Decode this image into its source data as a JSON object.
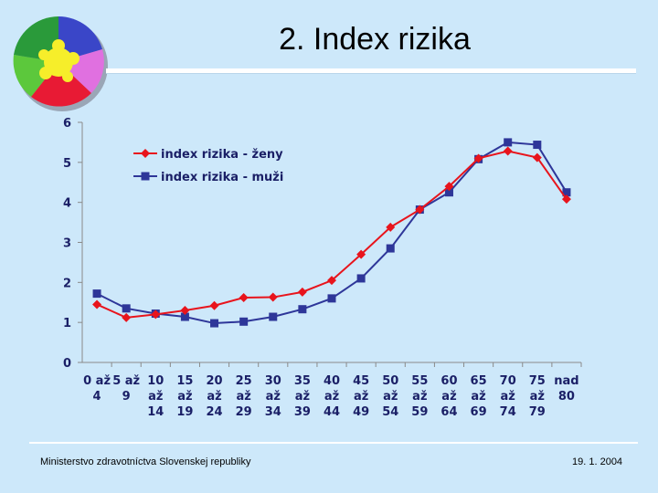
{
  "slide": {
    "title": "2. Index rizika",
    "footer_left": "Ministerstvo zdravotníctva Slovenskej republiky",
    "footer_right": "19. 1. 2004"
  },
  "logo": {
    "icon": "puzzle-circle-logo"
  },
  "colors": {
    "background": "#cde8fa",
    "women": "#e8141c",
    "men": "#2e3699",
    "axis_text": "#1a1f66"
  },
  "chart_data": {
    "type": "line",
    "categories": [
      [
        "0 až",
        "4"
      ],
      [
        "5 až",
        "9"
      ],
      [
        "10",
        "až",
        "14"
      ],
      [
        "15",
        "až",
        "19"
      ],
      [
        "20",
        "až",
        "24"
      ],
      [
        "25",
        "až",
        "29"
      ],
      [
        "30",
        "až",
        "34"
      ],
      [
        "35",
        "až",
        "39"
      ],
      [
        "40",
        "až",
        "44"
      ],
      [
        "45",
        "až",
        "49"
      ],
      [
        "50",
        "až",
        "54"
      ],
      [
        "55",
        "až",
        "59"
      ],
      [
        "60",
        "až",
        "64"
      ],
      [
        "65",
        "až",
        "69"
      ],
      [
        "70",
        "až",
        "74"
      ],
      [
        "75",
        "až",
        "79"
      ],
      [
        "nad",
        "80"
      ]
    ],
    "series": [
      {
        "name": "index rizika - ženy",
        "marker": "diamond",
        "values": [
          1.45,
          1.12,
          1.2,
          1.3,
          1.42,
          1.62,
          1.63,
          1.76,
          2.05,
          2.7,
          3.38,
          3.82,
          4.4,
          5.1,
          5.28,
          5.12,
          4.08
        ]
      },
      {
        "name": "index rizika - muži",
        "marker": "square",
        "values": [
          1.72,
          1.35,
          1.22,
          1.14,
          0.98,
          1.02,
          1.14,
          1.33,
          1.6,
          2.1,
          2.85,
          3.82,
          4.25,
          5.08,
          5.5,
          5.44,
          4.25
        ]
      }
    ],
    "ylim": [
      0,
      6
    ],
    "yticks": [
      0,
      1,
      2,
      3,
      4,
      5,
      6
    ],
    "legend": "top-left",
    "grid": false
  }
}
